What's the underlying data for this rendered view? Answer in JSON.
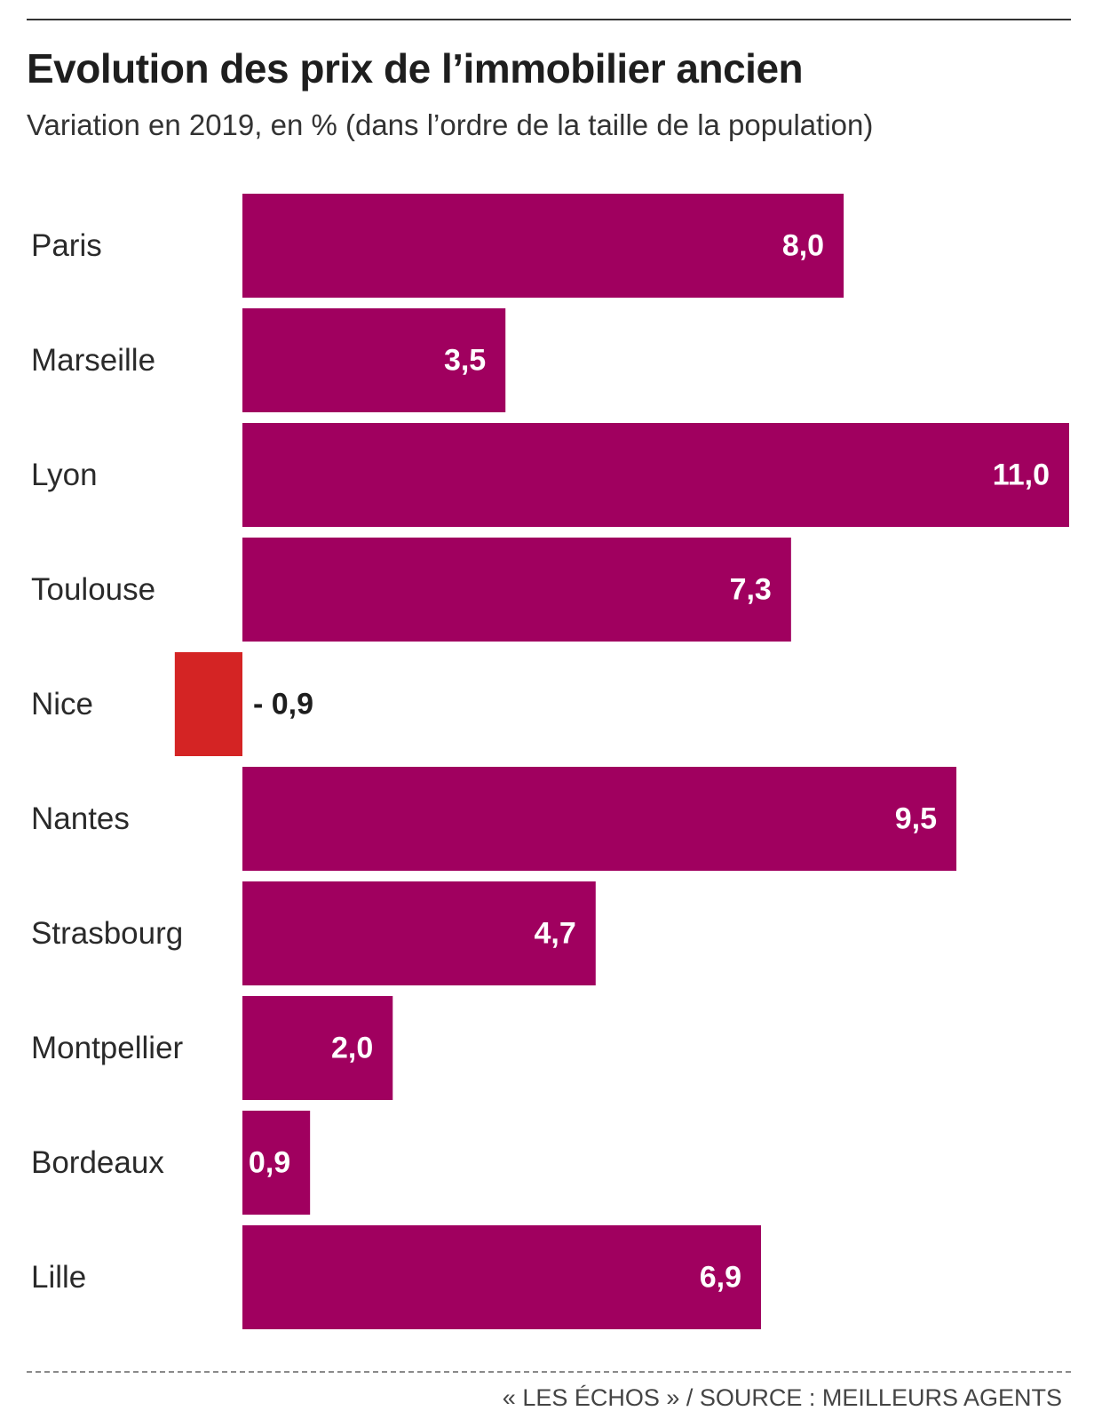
{
  "header": {
    "title": "Evolution des prix de l’immobilier ancien",
    "subtitle": "Variation en 2019, en % (dans l’ordre de la taille de la population)"
  },
  "footer": {
    "source": "« LES ÉCHOS » / SOURCE : MEILLEURS AGENTS"
  },
  "colors": {
    "positive": "#a0005f",
    "negative": "#d42424",
    "positive_label": "#ffffff",
    "negative_label": "#1e1e1e"
  },
  "chart_data": {
    "type": "bar",
    "orientation": "horizontal",
    "title": "Evolution des prix de l’immobilier ancien",
    "subtitle": "Variation en 2019, en % (dans l’ordre de la taille de la population)",
    "categories": [
      "Paris",
      "Marseille",
      "Lyon",
      "Toulouse",
      "Nice",
      "Nantes",
      "Strasbourg",
      "Montpellier",
      "Bordeaux",
      "Lille"
    ],
    "values": [
      8.0,
      3.5,
      11.0,
      7.3,
      -0.9,
      9.5,
      4.7,
      2.0,
      0.9,
      6.9
    ],
    "value_labels": [
      "8,0",
      "3,5",
      "11,0",
      "7,3",
      "- 0,9",
      "9,5",
      "4,7",
      "2,0",
      "0,9",
      "6,9"
    ],
    "xlim": [
      -0.9,
      11.0
    ],
    "grid": false,
    "legend": "none"
  }
}
